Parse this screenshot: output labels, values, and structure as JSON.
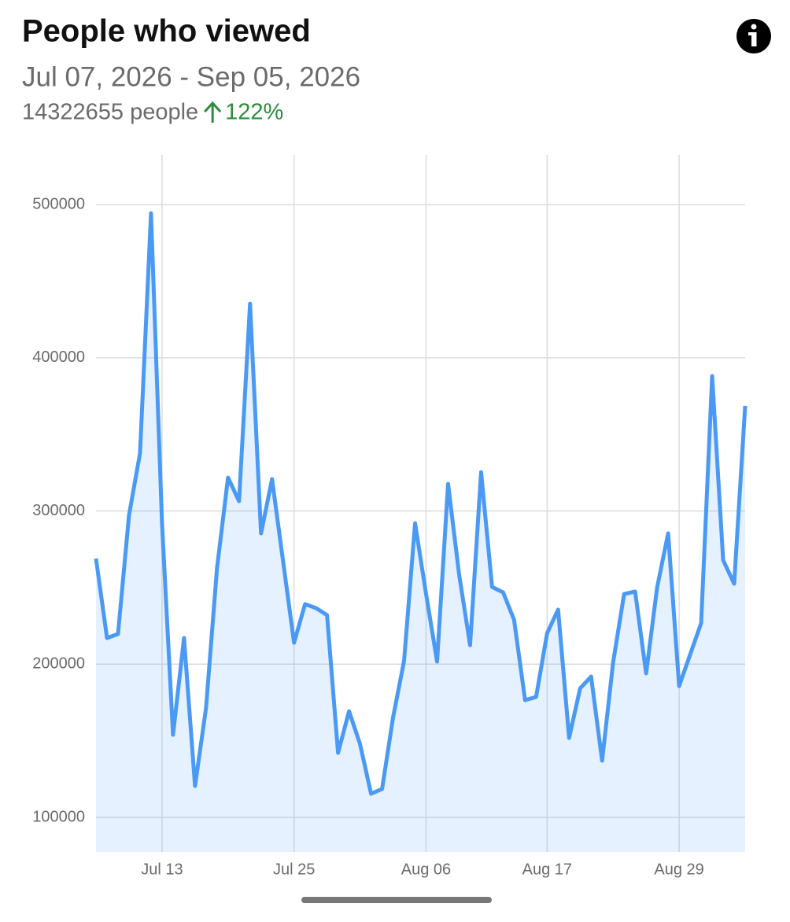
{
  "header": {
    "title": "People who viewed",
    "date_range": "Jul 07, 2026 - Sep 05, 2026",
    "count": "14322655 people",
    "change": "122%"
  },
  "chart_data": {
    "type": "area",
    "categories": [
      null,
      null,
      null,
      null,
      null,
      null,
      "Jul 13",
      null,
      null,
      null,
      null,
      null,
      null,
      null,
      null,
      null,
      null,
      null,
      "Jul 25",
      null,
      null,
      null,
      null,
      null,
      null,
      null,
      null,
      null,
      null,
      null,
      "Aug 06",
      null,
      null,
      null,
      null,
      null,
      null,
      null,
      null,
      null,
      null,
      "Aug 17",
      null,
      null,
      null,
      null,
      null,
      null,
      null,
      null,
      null,
      null,
      null,
      "Aug 29",
      null,
      null,
      null,
      null,
      null,
      null
    ],
    "values": [
      269000,
      217100,
      219700,
      297200,
      337700,
      494400,
      292000,
      153900,
      217100,
      120500,
      171400,
      262800,
      321800,
      306400,
      435300,
      285400,
      320800,
      267400,
      214000,
      239200,
      236600,
      232000,
      142100,
      169300,
      147800,
      115400,
      118500,
      165200,
      202200,
      292000,
      245800,
      201700,
      317700,
      258700,
      212400,
      325400,
      250400,
      246900,
      228900,
      176500,
      178600,
      220200,
      235600,
      151900,
      184200,
      191900,
      137000,
      201200,
      245800,
      247400,
      194000,
      250100,
      285400,
      185700,
      206300,
      226800,
      388100,
      267900,
      252500,
      368600
    ],
    "color": "#4a9af5",
    "ylim": [
      77400,
      532400
    ],
    "yticks": [
      100000,
      200000,
      300000,
      400000,
      500000
    ],
    "grid": true
  }
}
